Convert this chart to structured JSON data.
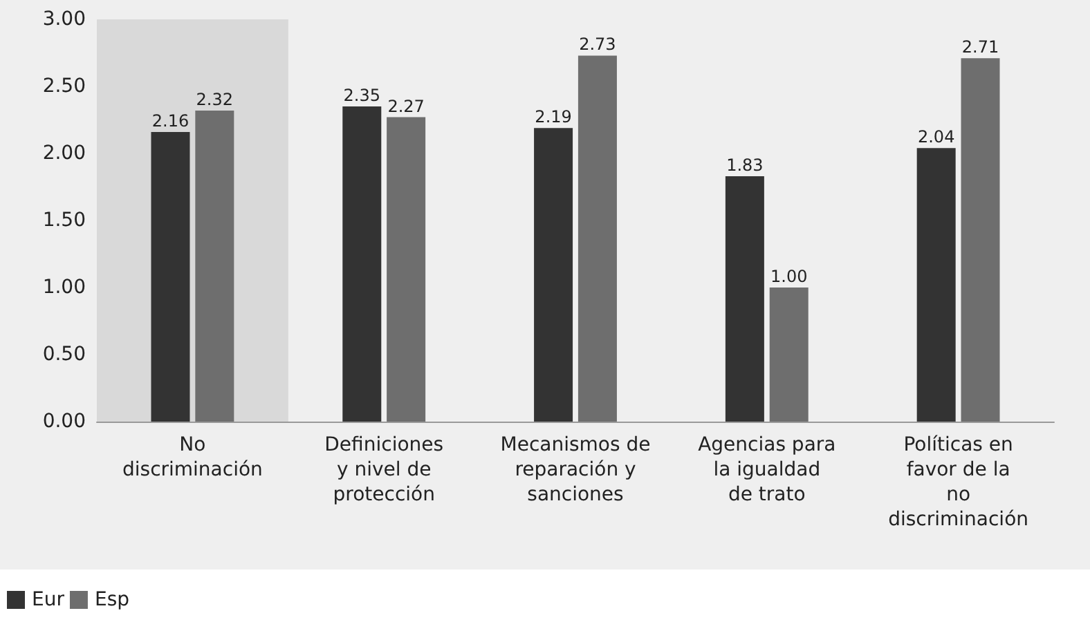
{
  "chart_data": {
    "type": "bar",
    "categories": [
      "No discriminación",
      "Definiciones y nivel de protección",
      "Mecanismos de reparación y sanciones",
      "Agencias para la igualdad de trato",
      "Políticas en favor de la no discriminación"
    ],
    "series": [
      {
        "name": "Eur",
        "color": "#333333",
        "values": [
          2.16,
          2.35,
          2.19,
          1.83,
          2.04
        ],
        "value_labels": [
          "2.16",
          "2.35",
          "2.19",
          "1.83",
          "2.04"
        ]
      },
      {
        "name": "Esp",
        "color": "#6e6e6e",
        "values": [
          2.32,
          2.27,
          2.73,
          1.0,
          2.71
        ],
        "value_labels": [
          "2.32",
          "2.27",
          "2.73",
          "1.00",
          "2.71"
        ]
      }
    ],
    "ylim": [
      0,
      3
    ],
    "yticks": [
      {
        "value": 0,
        "label": "0.00"
      },
      {
        "value": 0.5,
        "label": "0.50"
      },
      {
        "value": 1,
        "label": "1.00"
      },
      {
        "value": 1.5,
        "label": "1.50"
      },
      {
        "value": 2,
        "label": "2.00"
      },
      {
        "value": 2.5,
        "label": "2.50"
      },
      {
        "value": 3,
        "label": "3.00"
      }
    ],
    "bands": [
      {
        "axis": "x",
        "from": "No discriminación",
        "to": "No discriminación",
        "color": "#d9d9d9"
      }
    ],
    "grid": false,
    "legend": "bottom left"
  }
}
